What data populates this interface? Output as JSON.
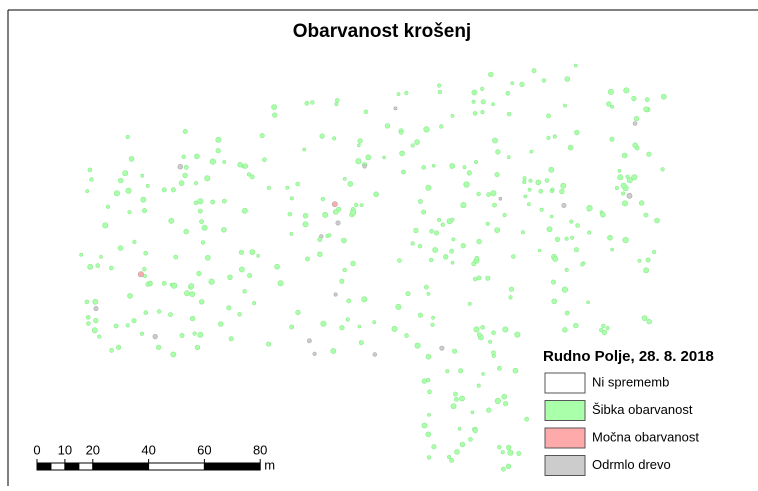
{
  "title": "Obarvanost krošenj",
  "legend": {
    "title": "Rudno Polje, 28. 8. 2018",
    "items": [
      {
        "label": "Ni sprememb",
        "color": "#ffffff"
      },
      {
        "label": "Šibka obarvanost",
        "color": "#aaffaa"
      },
      {
        "label": "Močna obarvanost",
        "color": "#ffaaaa"
      },
      {
        "label": "Odrmlo drevo",
        "color": "#cccccc"
      }
    ]
  },
  "scale_bar": {
    "ticks": [
      0,
      10,
      20,
      40,
      60,
      80
    ],
    "unit": "m"
  }
}
